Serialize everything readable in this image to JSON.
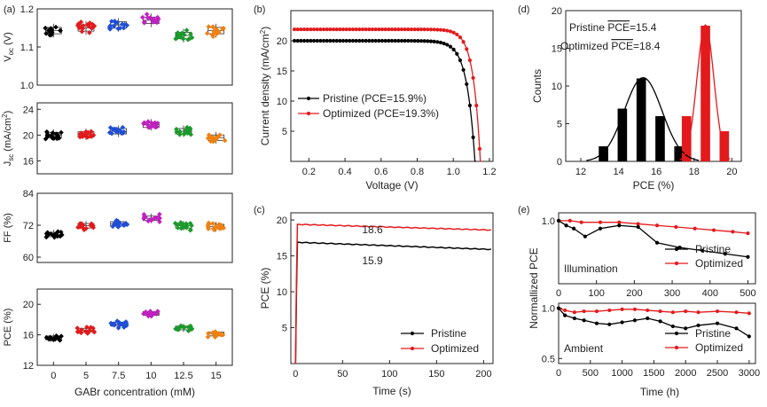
{
  "colors": {
    "pristine": "#000000",
    "optimized": "#e31a1c",
    "c5": "#e31a1c",
    "c0": "#000000",
    "c7": "#1f4fd6",
    "c10": "#c020c0",
    "c12": "#1a9a2a",
    "c15": "#f08010",
    "gauss": "#000000"
  },
  "panel_labels": {
    "a": "(a)",
    "b": "(b)",
    "c": "(c)",
    "d": "(d)",
    "e": "(e)"
  },
  "chart_data": [
    {
      "id": "a",
      "type": "box-scatter",
      "xlabel": "GABr concentration (mM)",
      "categories": [
        "0",
        "5",
        "7.5",
        "10",
        "12.5",
        "15"
      ],
      "subplots": [
        {
          "key": "voc",
          "ylabel": "V",
          "ylabel_sub": "oc",
          "ylabel_unit": " (V)",
          "ylim": [
            1.0,
            1.2
          ],
          "ticks": [
            1.0,
            1.1,
            1.2
          ],
          "tick_labels": [
            "1.0",
            "1.1",
            "1.2"
          ],
          "means": [
            1.143,
            1.15,
            1.158,
            1.17,
            1.13,
            1.143
          ],
          "spread": 0.012
        },
        {
          "key": "jsc",
          "ylabel": "J",
          "ylabel_sub": "sc",
          "ylabel_unit": " (mA/cm",
          "ylabel_sup": "2",
          "ylabel_end": ")",
          "ylim": [
            14,
            25
          ],
          "ticks": [
            16,
            20,
            24
          ],
          "tick_labels": [
            "16",
            "20",
            "24"
          ],
          "means": [
            20.0,
            20.1,
            20.6,
            21.6,
            20.6,
            19.6
          ],
          "spread": 0.6
        },
        {
          "key": "ff",
          "ylabel": "FF (%)",
          "ylim": [
            58,
            84
          ],
          "ticks": [
            60,
            72,
            84
          ],
          "tick_labels": [
            "60",
            "72",
            "84"
          ],
          "means": [
            68.5,
            71.8,
            72.5,
            74.6,
            71.8,
            71.5
          ],
          "spread": 1.2
        },
        {
          "key": "pce",
          "ylabel": "PCE (%)",
          "ylim": [
            12,
            22
          ],
          "ticks": [
            12,
            16,
            20
          ],
          "tick_labels": [
            "12",
            "16",
            "20"
          ],
          "means": [
            15.6,
            16.6,
            17.4,
            18.8,
            16.9,
            16.1
          ],
          "spread": 0.35
        }
      ]
    },
    {
      "id": "b",
      "type": "line",
      "xlabel": "Voltage (V)",
      "ylabel": "Current density (mA/cm",
      "ylabel_sup": "2",
      "ylabel_end": ")",
      "xlim": [
        0.1,
        1.22
      ],
      "ylim": [
        0,
        25
      ],
      "xticks": [
        0.2,
        0.4,
        0.6,
        0.8,
        1.0,
        1.2
      ],
      "xtick_labels": [
        "0.2",
        "0.4",
        "0.6",
        "0.8",
        "1.0",
        "1.2"
      ],
      "yticks": [
        5,
        10,
        15,
        20
      ],
      "ytick_labels": [
        "5",
        "10",
        "15",
        "20"
      ],
      "series": [
        {
          "name": "Pristine (PCE=15.9%)",
          "key": "pristine",
          "jsc": 20.0,
          "voc": 1.12,
          "n": 0.045
        },
        {
          "name": "Optimized (PCE=19.3%)",
          "key": "optimized",
          "jsc": 21.9,
          "voc": 1.15,
          "n": 0.04
        }
      ]
    },
    {
      "id": "c",
      "type": "line",
      "xlabel": "Time (s)",
      "ylabel": "PCE (%)",
      "xlim": [
        -5,
        210
      ],
      "ylim": [
        0,
        21
      ],
      "xticks": [
        0,
        50,
        100,
        150,
        200
      ],
      "xtick_labels": [
        "0",
        "50",
        "100",
        "150",
        "200"
      ],
      "yticks": [
        5,
        10,
        15,
        20
      ],
      "ytick_labels": [
        "5",
        "10",
        "15",
        "20"
      ],
      "series": [
        {
          "name": "Pristine",
          "key": "pristine",
          "start": 16.9,
          "end": 15.9
        },
        {
          "name": "Optimized",
          "key": "optimized",
          "start": 19.4,
          "end": 18.6
        }
      ],
      "annotations": [
        {
          "text": "18.6",
          "key": "optimized"
        },
        {
          "text": "15.9",
          "key": "pristine"
        }
      ]
    },
    {
      "id": "d",
      "type": "bar-histogram",
      "xlabel": "PCE (%)",
      "ylabel": "Counts",
      "xlim": [
        11.2,
        20.5
      ],
      "ylim": [
        0,
        20
      ],
      "xticks": [
        12,
        14,
        16,
        18,
        20
      ],
      "xtick_labels": [
        "12",
        "14",
        "16",
        "18",
        "20"
      ],
      "yticks": [
        0,
        5,
        10,
        15,
        20
      ],
      "ytick_labels": [
        "0",
        "5",
        "10",
        "15",
        "20"
      ],
      "series": [
        {
          "name": "Pristine",
          "key": "pristine",
          "bins": [
            13.2,
            14.2,
            15.2,
            16.2,
            17.2
          ],
          "counts": [
            2,
            7,
            11,
            6,
            2
          ],
          "mean_label": "PCE",
          "mean_value": "=15.4",
          "mu": 15.3,
          "sigma": 1.0
        },
        {
          "name": "Optimized",
          "key": "optimized",
          "bins": [
            17.6,
            18.6,
            19.6
          ],
          "counts": [
            6,
            18,
            4
          ],
          "mean_label": "PCE",
          "mean_value": "=18.4",
          "mu": 18.6,
          "sigma": 0.45
        }
      ]
    },
    {
      "id": "e",
      "type": "line",
      "ylabel": "Normallized PCE",
      "subplots": [
        {
          "key": "illum",
          "label": "Illumination",
          "xlim": [
            0,
            520
          ],
          "ylim": [
            0.6,
            1.05
          ],
          "xticks": [
            0,
            100,
            200,
            300,
            400,
            500
          ],
          "xtick_labels": [
            "0",
            "100",
            "200",
            "300",
            "400",
            "500"
          ],
          "yticks": [
            1.0
          ],
          "ytick_labels": [
            "1.0"
          ],
          "pristine": [
            [
              0,
              1.0
            ],
            [
              20,
              0.97
            ],
            [
              40,
              0.95
            ],
            [
              70,
              0.9
            ],
            [
              110,
              0.95
            ],
            [
              160,
              0.97
            ],
            [
              210,
              0.96
            ],
            [
              260,
              0.86
            ],
            [
              320,
              0.83
            ],
            [
              380,
              0.81
            ],
            [
              440,
              0.79
            ],
            [
              500,
              0.77
            ]
          ],
          "optimized": [
            [
              0,
              1.0
            ],
            [
              30,
              1.0
            ],
            [
              60,
              0.99
            ],
            [
              110,
              0.99
            ],
            [
              160,
              0.99
            ],
            [
              210,
              0.98
            ],
            [
              260,
              0.97
            ],
            [
              310,
              0.96
            ],
            [
              360,
              0.95
            ],
            [
              410,
              0.94
            ],
            [
              460,
              0.93
            ],
            [
              500,
              0.92
            ]
          ]
        },
        {
          "key": "amb",
          "label": "Ambient",
          "xlim": [
            0,
            3100
          ],
          "ylim": [
            0.45,
            1.05
          ],
          "xticks": [
            0,
            500,
            1000,
            1500,
            2000,
            2500,
            3000
          ],
          "xtick_labels": [
            "0",
            "500",
            "1000",
            "1500",
            "2000",
            "2500",
            "3000"
          ],
          "yticks": [
            0.5,
            1.0
          ],
          "ytick_labels": [
            "0.5",
            "1.0"
          ],
          "pristine": [
            [
              0,
              1.0
            ],
            [
              100,
              0.93
            ],
            [
              250,
              0.9
            ],
            [
              400,
              0.88
            ],
            [
              600,
              0.85
            ],
            [
              800,
              0.84
            ],
            [
              1000,
              0.86
            ],
            [
              1200,
              0.88
            ],
            [
              1400,
              0.9
            ],
            [
              1600,
              0.87
            ],
            [
              1800,
              0.82
            ],
            [
              2000,
              0.8
            ],
            [
              2200,
              0.83
            ],
            [
              2500,
              0.85
            ],
            [
              2800,
              0.8
            ],
            [
              3000,
              0.72
            ]
          ],
          "optimized": [
            [
              0,
              1.0
            ],
            [
              100,
              0.98
            ],
            [
              250,
              0.96
            ],
            [
              400,
              0.97
            ],
            [
              600,
              0.97
            ],
            [
              800,
              0.98
            ],
            [
              1000,
              0.99
            ],
            [
              1200,
              0.99
            ],
            [
              1400,
              0.98
            ],
            [
              1600,
              0.97
            ],
            [
              1800,
              0.96
            ],
            [
              2000,
              0.97
            ],
            [
              2200,
              0.96
            ],
            [
              2500,
              0.97
            ],
            [
              2800,
              0.96
            ],
            [
              3000,
              0.95
            ]
          ]
        }
      ],
      "xlabel": "Time (h)",
      "legend": [
        "Pristine",
        "Optimized"
      ]
    }
  ]
}
